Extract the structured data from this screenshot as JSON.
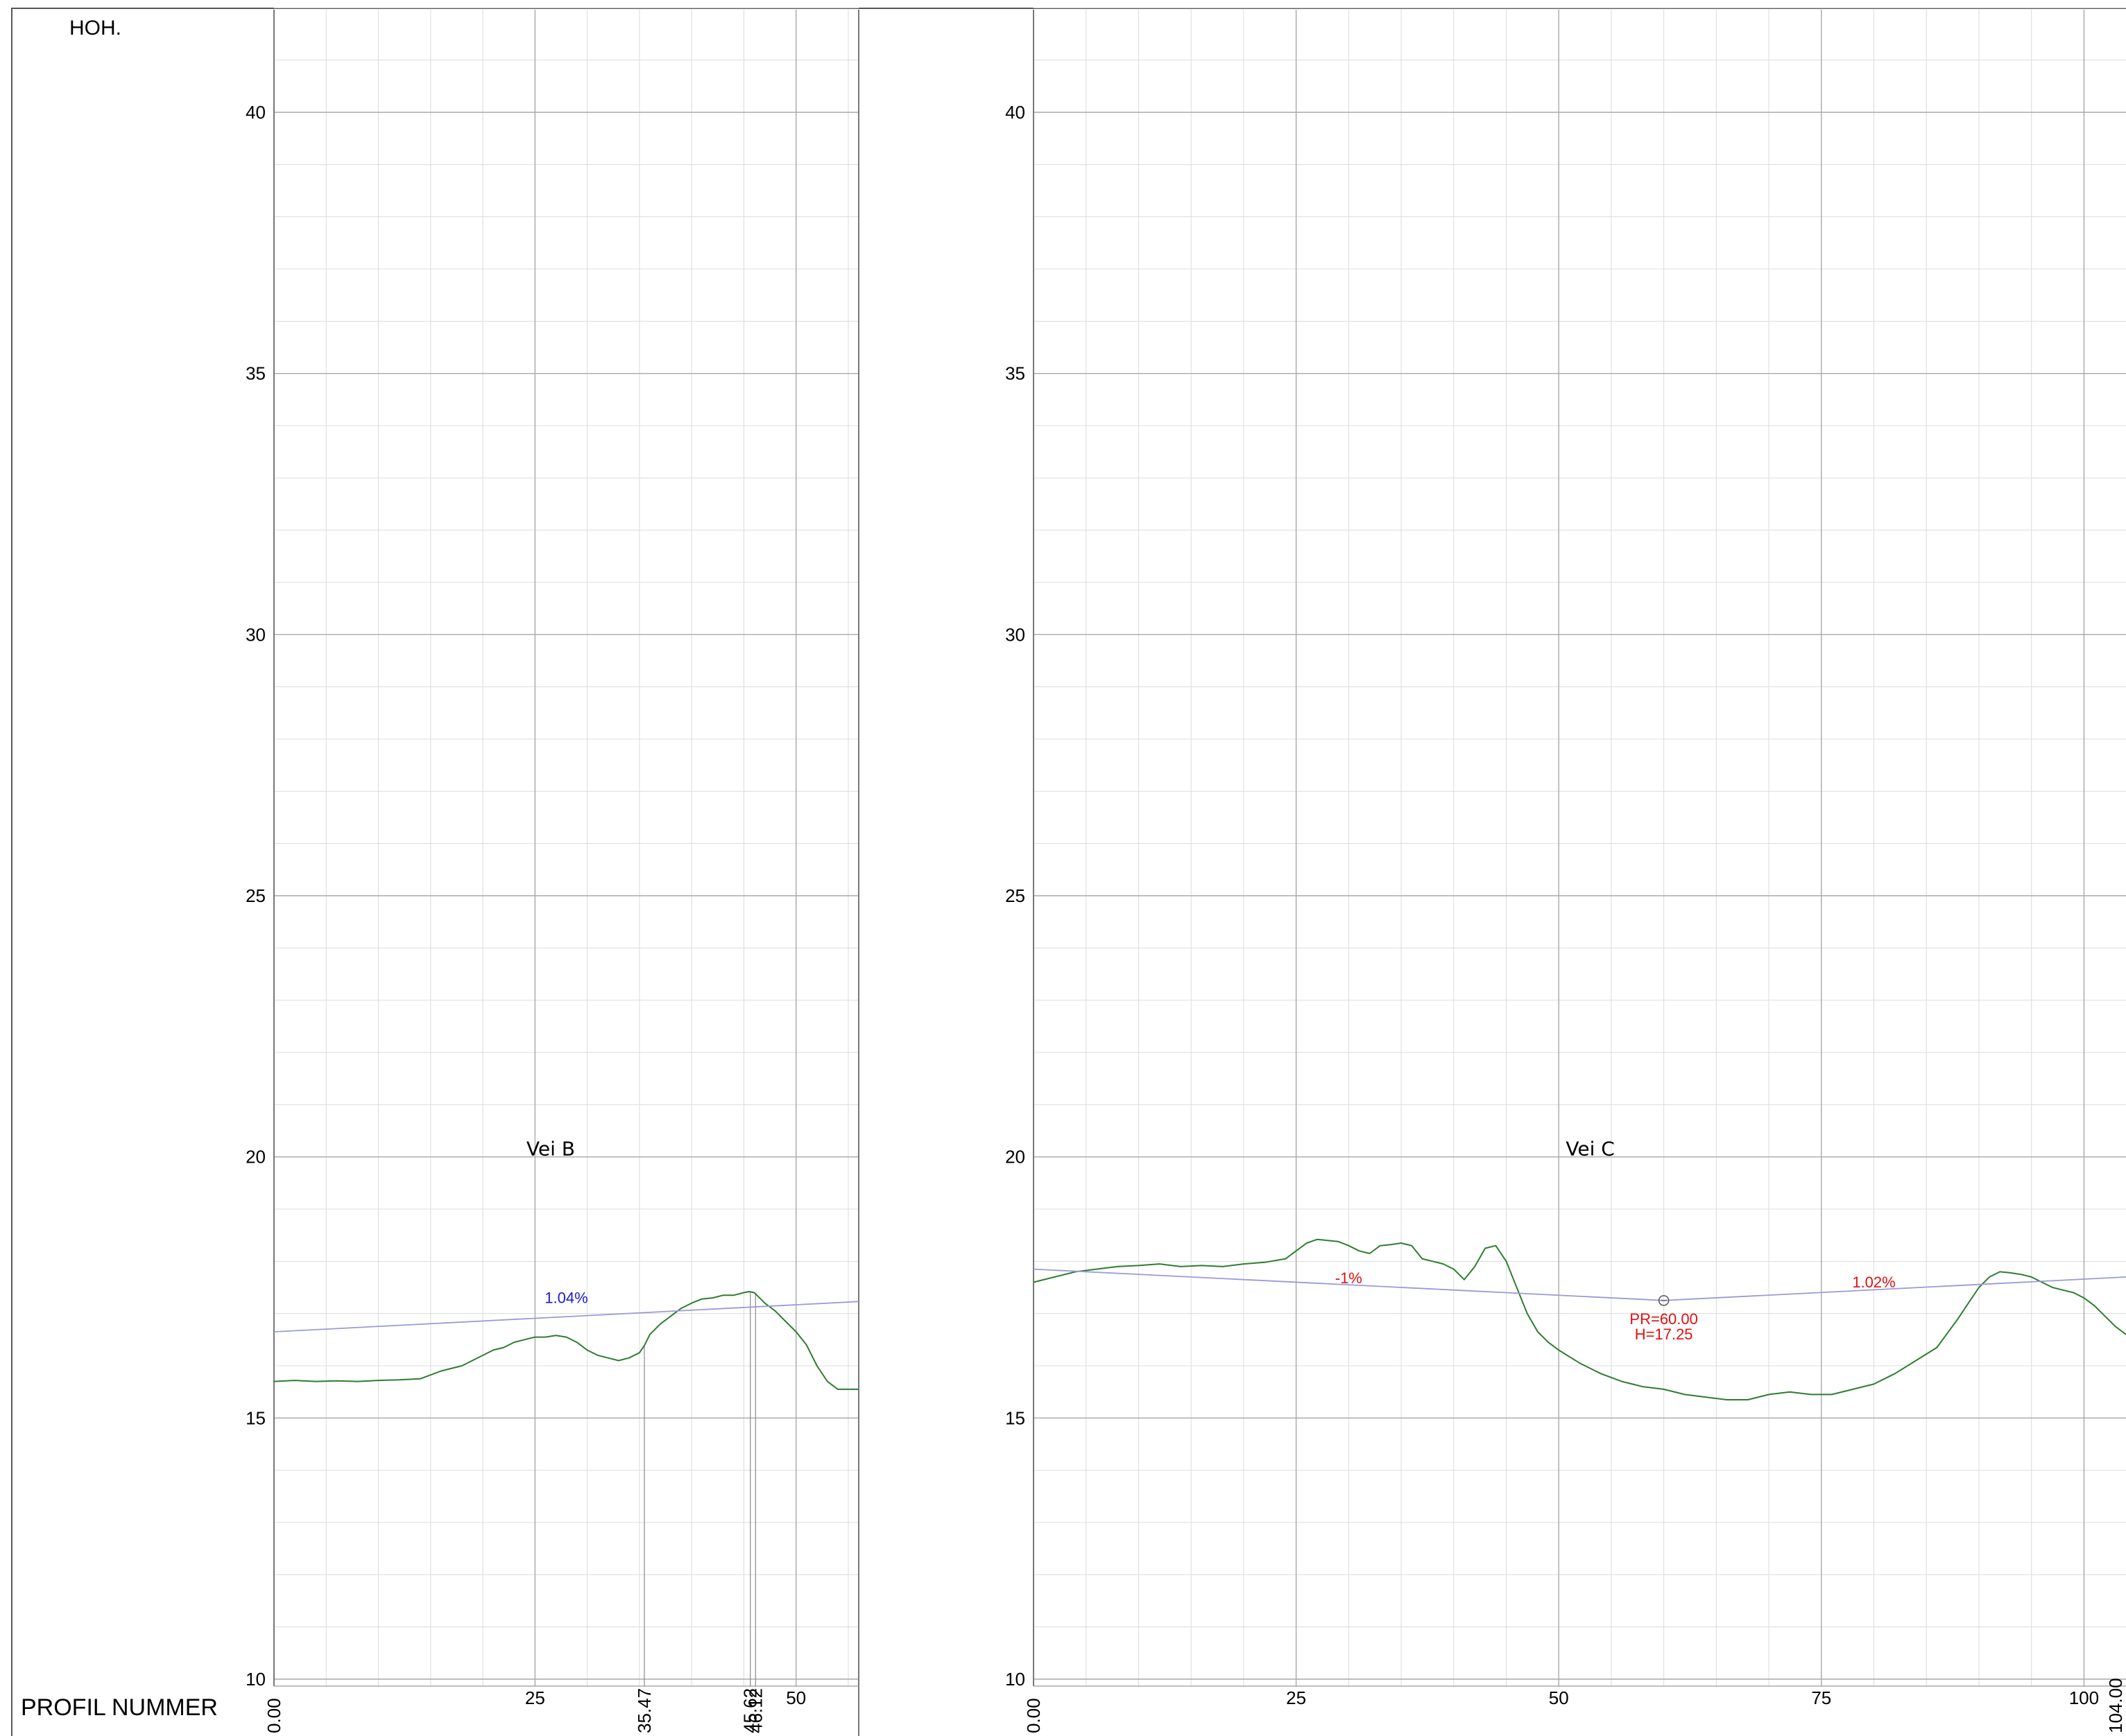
{
  "header": {
    "y_axis_label": "HOH.",
    "x_axis_label": "PROFIL NUMMER"
  },
  "colors": {
    "terrain": "#2e7d2e",
    "design": "#9a9ad8",
    "grade_b": "#1a1ad0",
    "grade_c": "#e01010",
    "grid_major": "#a8a8a8",
    "grid_minor": "#dcdcdc"
  },
  "chart_data": [
    {
      "type": "line",
      "title": "Vei B",
      "xlim": [
        0,
        56
      ],
      "ylim": [
        10,
        42
      ],
      "yticks": [
        "10",
        "15",
        "20",
        "25",
        "30",
        "35",
        "40"
      ],
      "xticks_major": [
        "25",
        "50"
      ],
      "xticks_rotated": [
        "0.00",
        "35.47",
        "45.62",
        "46.12"
      ],
      "station_lines": [
        35.47,
        45.62,
        46.12
      ],
      "grade_label": "1.04%",
      "grade_label_at": {
        "x": 28,
        "y": 17.2
      },
      "series": [
        {
          "role": "terrain",
          "x": [
            0,
            2,
            4,
            6,
            8,
            10,
            12,
            14,
            16,
            18,
            20,
            21,
            22,
            23,
            24,
            25,
            26,
            27,
            28,
            29,
            30,
            31,
            32,
            33,
            34,
            35,
            35.5,
            36,
            37,
            38,
            39,
            40,
            41,
            42,
            43,
            44,
            45,
            45.5,
            46,
            46.5,
            47,
            48,
            49,
            50,
            51,
            52,
            53,
            54,
            55,
            56
          ],
          "y": [
            15.7,
            15.72,
            15.7,
            15.71,
            15.7,
            15.72,
            15.73,
            15.75,
            15.9,
            16.0,
            16.2,
            16.3,
            16.35,
            16.45,
            16.5,
            16.55,
            16.55,
            16.58,
            16.55,
            16.45,
            16.3,
            16.2,
            16.15,
            16.1,
            16.15,
            16.25,
            16.4,
            16.6,
            16.8,
            16.95,
            17.1,
            17.2,
            17.28,
            17.3,
            17.35,
            17.35,
            17.4,
            17.42,
            17.4,
            17.3,
            17.2,
            17.05,
            16.85,
            16.65,
            16.4,
            16.0,
            15.7,
            15.55,
            15.55,
            15.55
          ]
        },
        {
          "role": "design",
          "x": [
            0,
            56
          ],
          "y": [
            16.65,
            17.23
          ]
        }
      ]
    },
    {
      "type": "line",
      "title": "Vei C",
      "xlim": [
        0,
        104
      ],
      "ylim": [
        10,
        42
      ],
      "yticks": [
        "10",
        "15",
        "20",
        "25",
        "30",
        "35",
        "40"
      ],
      "xticks_major": [
        "25",
        "50",
        "75",
        "100"
      ],
      "xticks_rotated": [
        "0.00",
        "104.00"
      ],
      "grade_labels": [
        {
          "text": "-1%",
          "x": 30,
          "y": 17.58
        },
        {
          "text": "1.02%",
          "x": 80,
          "y": 17.5
        }
      ],
      "vertex": {
        "x": 60.0,
        "y": 17.25,
        "label_pr": "PR=60.00",
        "label_h": "H=17.25"
      },
      "series": [
        {
          "role": "terrain",
          "x": [
            0,
            2,
            4,
            6,
            8,
            10,
            12,
            14,
            16,
            18,
            20,
            22,
            24,
            25,
            26,
            27,
            28,
            29,
            30,
            31,
            32,
            33,
            34,
            35,
            36,
            37,
            38,
            39,
            40,
            41,
            42,
            43,
            44,
            45,
            46,
            47,
            48,
            49,
            50,
            52,
            54,
            56,
            58,
            60,
            62,
            64,
            66,
            68,
            70,
            72,
            74,
            76,
            78,
            80,
            82,
            84,
            86,
            88,
            89,
            90,
            91,
            92,
            93,
            94,
            95,
            96,
            97,
            98,
            99,
            100,
            101,
            102,
            103,
            104
          ],
          "y": [
            17.6,
            17.7,
            17.8,
            17.85,
            17.9,
            17.92,
            17.95,
            17.9,
            17.92,
            17.9,
            17.95,
            17.98,
            18.05,
            18.2,
            18.35,
            18.42,
            18.4,
            18.38,
            18.3,
            18.2,
            18.15,
            18.3,
            18.32,
            18.35,
            18.3,
            18.05,
            18.0,
            17.95,
            17.85,
            17.65,
            17.9,
            18.25,
            18.3,
            18.0,
            17.5,
            17.0,
            16.65,
            16.45,
            16.3,
            16.05,
            15.85,
            15.7,
            15.6,
            15.55,
            15.45,
            15.4,
            15.35,
            15.35,
            15.45,
            15.5,
            15.45,
            15.45,
            15.55,
            15.65,
            15.85,
            16.1,
            16.35,
            16.9,
            17.2,
            17.5,
            17.7,
            17.8,
            17.78,
            17.75,
            17.7,
            17.6,
            17.5,
            17.45,
            17.4,
            17.3,
            17.15,
            16.95,
            16.75,
            16.6
          ]
        },
        {
          "role": "design",
          "x": [
            0,
            60,
            104
          ],
          "y": [
            17.85,
            17.25,
            17.7
          ]
        }
      ]
    }
  ]
}
